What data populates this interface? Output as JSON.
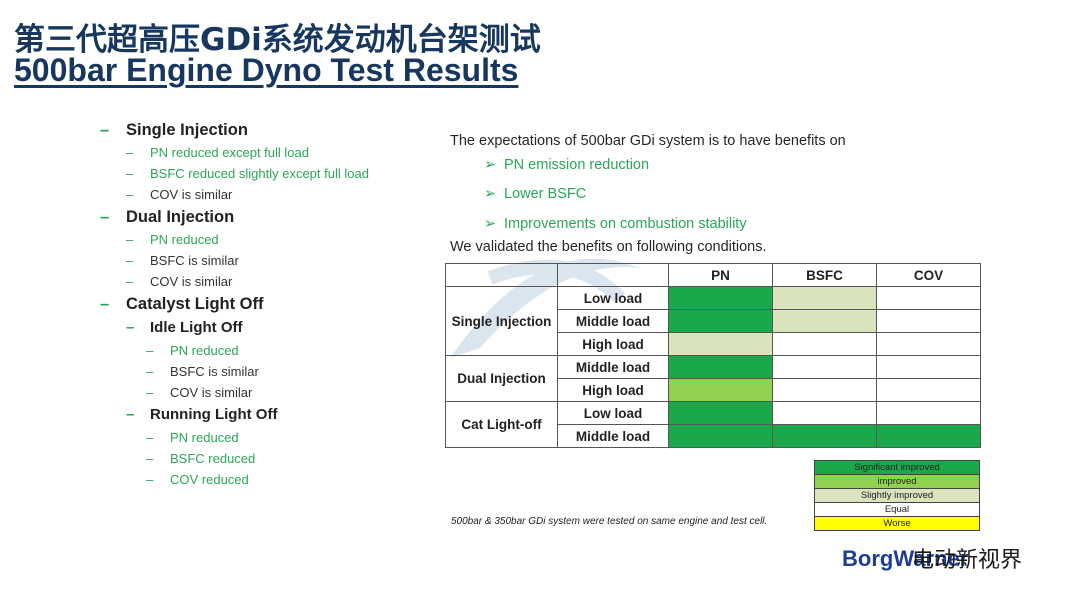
{
  "title": {
    "cn": "第三代超高压GDi系统发动机台架测试",
    "en": "500bar Engine Dyno Test Results"
  },
  "summary": {
    "dash": "–",
    "single": {
      "heading": "Single Injection",
      "items": [
        "PN reduced except full load",
        "BSFC reduced slightly except full load",
        "COV is similar"
      ]
    },
    "dual": {
      "heading": "Dual Injection",
      "items": [
        "PN reduced",
        "BSFC is similar",
        "COV is similar"
      ]
    },
    "catalyst": {
      "heading": "Catalyst Light Off",
      "idle": {
        "heading": "Idle Light Off",
        "items": [
          "PN reduced",
          "BSFC is similar",
          "COV is similar"
        ]
      },
      "running": {
        "heading": "Running Light Off",
        "items": [
          "PN reduced",
          "BSFC reduced",
          "COV reduced"
        ]
      }
    }
  },
  "expectations": {
    "intro": "The expectations of 500bar GDi system is to have benefits on",
    "arrow": "➢",
    "bullets": [
      "PN emission reduction",
      "Lower BSFC",
      "Improvements on combustion stability"
    ],
    "validated": "We validated the benefits on following conditions."
  },
  "table": {
    "headers": [
      "PN",
      "BSFC",
      "COV"
    ],
    "groups": {
      "single": "Single Injection",
      "dual": "Dual Injection",
      "cat": "Cat Light-off"
    },
    "rows": [
      {
        "load": "Low load",
        "PN": "Significant improved",
        "BSFC": "Slightly improved",
        "COV": "Equal"
      },
      {
        "load": "Middle load",
        "PN": "Significant improved",
        "BSFC": "Slightly improved",
        "COV": "Equal"
      },
      {
        "load": "High load",
        "PN": "Slightly improved",
        "BSFC": "Equal",
        "COV": "Equal"
      },
      {
        "load": "Middle load",
        "PN": "Significant improved",
        "BSFC": "Equal",
        "COV": "Equal"
      },
      {
        "load": "High load",
        "PN": "improved",
        "BSFC": "Equal",
        "COV": "Equal"
      },
      {
        "load": "Low load",
        "PN": "Significant improved",
        "BSFC": "Equal",
        "COV": "Equal"
      },
      {
        "load": "Middle load",
        "PN": "Significant improved",
        "BSFC": "Significant improved",
        "COV": "Significant improved"
      }
    ]
  },
  "legend": [
    {
      "label": "Significant improved",
      "color": "#1aa84a"
    },
    {
      "label": "improved",
      "color": "#92d050"
    },
    {
      "label": "Slightly improved",
      "color": "#d8e4bc"
    },
    {
      "label": "Equal",
      "color": "#ffffff"
    },
    {
      "label": "Worse",
      "color": "#ffff00"
    }
  ],
  "footnote": "500bar & 350bar GDi system were tested on same engine and test cell.",
  "branding": {
    "company_logo": "BorgWarner",
    "watermark_cn": "电动新视界"
  }
}
